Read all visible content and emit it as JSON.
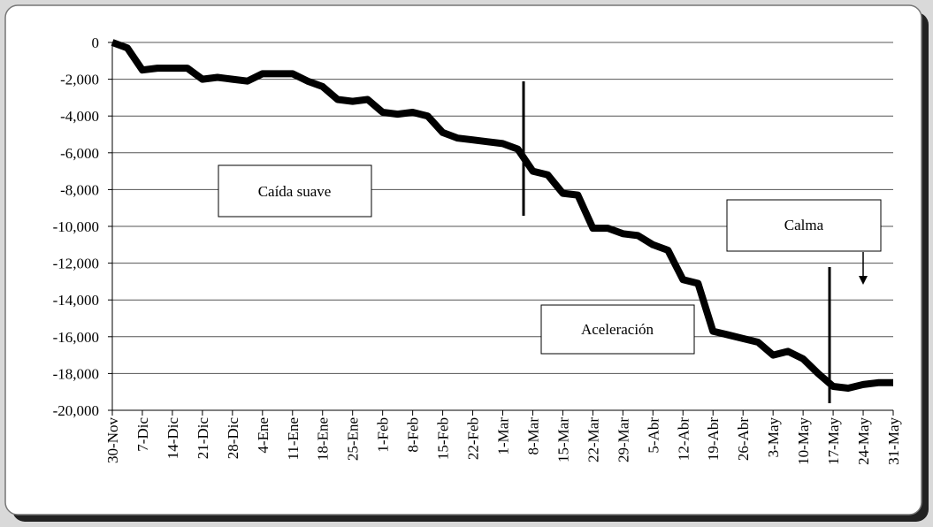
{
  "chart_data": {
    "type": "line",
    "categories": [
      "30-Nov",
      null,
      "7-Dic",
      null,
      "14-Dic",
      null,
      "21-Dic",
      null,
      "28-Dic",
      null,
      "4-Ene",
      null,
      "11-Ene",
      null,
      "18-Ene",
      null,
      "25-Ene",
      null,
      "1-Feb",
      null,
      "8-Feb",
      null,
      "15-Feb",
      null,
      "22-Feb",
      null,
      "1-Mar",
      null,
      "8-Mar",
      null,
      "15-Mar",
      null,
      "22-Mar",
      null,
      "29-Mar",
      null,
      "5-Abr",
      null,
      "12-Abr",
      null,
      "19-Abr",
      null,
      "26-Abr",
      null,
      "3-May",
      null,
      "10-May",
      null,
      "17-May",
      null,
      "24-May",
      null,
      "31-May"
    ],
    "values": [
      0,
      -300,
      -1500,
      -1400,
      -1400,
      -1400,
      -2000,
      -1900,
      -2000,
      -2100,
      -1700,
      -1700,
      -1700,
      -2100,
      -2400,
      -3100,
      -3200,
      -3100,
      -3800,
      -3900,
      -3800,
      -4000,
      -4900,
      -5200,
      -5300,
      -5400,
      -5500,
      -5800,
      -7000,
      -7200,
      -8200,
      -8300,
      -10100,
      -10100,
      -10400,
      -10500,
      -11000,
      -11300,
      -12900,
      -13100,
      -15700,
      -15900,
      -16100,
      -16300,
      -17000,
      -16800,
      -17200,
      -18000,
      -18700,
      -18800,
      -18600,
      -18500,
      -18500
    ],
    "color": "#000000",
    "ylim": [
      -20000,
      0
    ],
    "yticks": [
      0,
      {
        "value": -2000,
        "label": "-2,000"
      },
      {
        "value": -4000,
        "label": "-4,000"
      },
      {
        "value": -6000,
        "label": "-6,000"
      },
      {
        "value": -8000,
        "label": "-8,000"
      },
      {
        "value": -10000,
        "label": "-10,000"
      },
      {
        "value": -12000,
        "label": "-12,000"
      },
      {
        "value": -14000,
        "label": "-14,000"
      },
      {
        "value": -16000,
        "label": "-16,000"
      },
      {
        "value": -18000,
        "label": "-18,000"
      },
      {
        "value": -20000,
        "label": "-20,000"
      }
    ],
    "grid": true,
    "annotations": [
      "Caída suave",
      "Aceleración",
      "Calma"
    ]
  }
}
